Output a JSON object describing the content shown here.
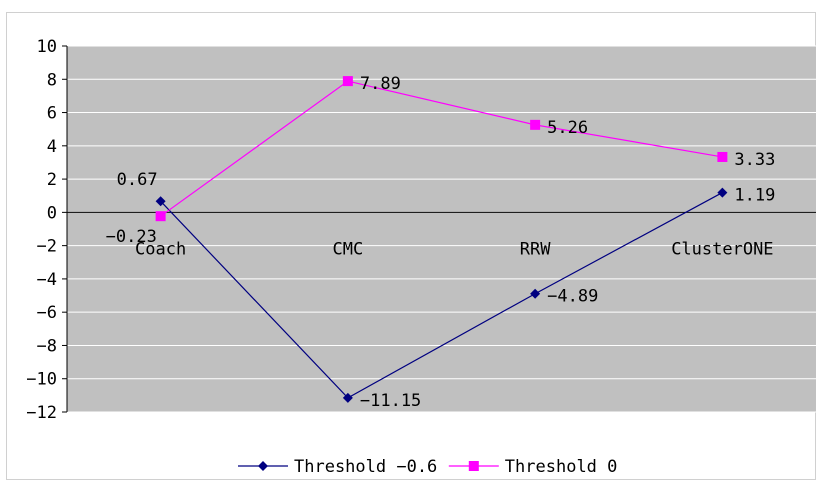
{
  "chart_data": {
    "type": "line",
    "categories": [
      "Coach",
      "CMC",
      "RRW",
      "ClusterONE"
    ],
    "ylim": [
      -12,
      10
    ],
    "yticks": [
      10,
      8,
      6,
      4,
      2,
      0,
      -2,
      -4,
      -6,
      -8,
      -10,
      -12
    ],
    "ytick_labels": [
      "10",
      "8",
      "6",
      "4",
      "2",
      "0",
      "−2",
      "−4",
      "−6",
      "−8",
      "−10",
      "−12"
    ],
    "grid": true,
    "legend_position": "bottom",
    "series": [
      {
        "name": "Threshold −0.6",
        "values": [
          0.67,
          -11.15,
          -4.89,
          1.19
        ],
        "labels": [
          "0.67",
          "−11.15",
          "−4.89",
          "1.19"
        ],
        "color": "#000080",
        "marker": "diamond"
      },
      {
        "name": "Threshold 0",
        "values": [
          -0.23,
          7.89,
          5.26,
          3.33
        ],
        "labels": [
          "−0.23",
          "7.89",
          "5.26",
          "3.33"
        ],
        "color": "#ff00ff",
        "marker": "square"
      }
    ],
    "plot_bg": "#c0c0c0",
    "gridline_color": "#ffffff"
  }
}
